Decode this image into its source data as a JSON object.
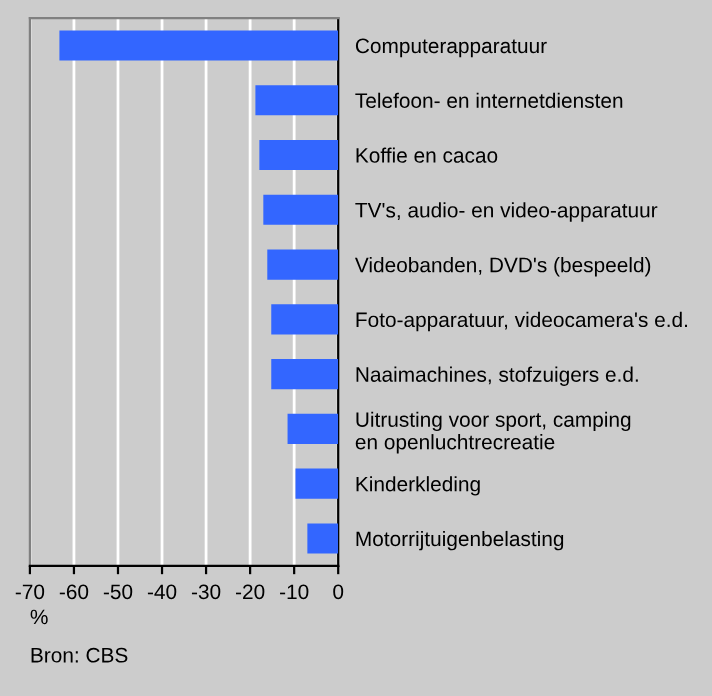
{
  "chart_data": {
    "type": "bar",
    "orientation": "horizontal",
    "categories": [
      "Computerapparatuur",
      "Telefoon- en internetdiensten",
      "Koffie en cacao",
      "TV's, audio- en video-apparatuur",
      "Videobanden, DVD's (bespeeld)",
      "Foto-apparatuur, videocamera's e.d.",
      "Naaimachines, stofzuigers e.d.",
      "Uitrusting voor sport, camping\nen openluchtrecreatie",
      "Kinderkleding",
      "Motorrijtuigenbelasting"
    ],
    "values": [
      -63.3,
      -18.8,
      -17.9,
      -17.0,
      -16.1,
      -15.2,
      -15.2,
      -11.5,
      -9.7,
      -7.0
    ],
    "color": "#3366ff",
    "xlim": [
      -70,
      0
    ],
    "xticks": [
      -70,
      -60,
      -50,
      -40,
      -30,
      -20,
      -10,
      0
    ],
    "xlabel": "%",
    "grid": "x",
    "legend": false,
    "annotations": [
      "Bron: CBS"
    ]
  }
}
